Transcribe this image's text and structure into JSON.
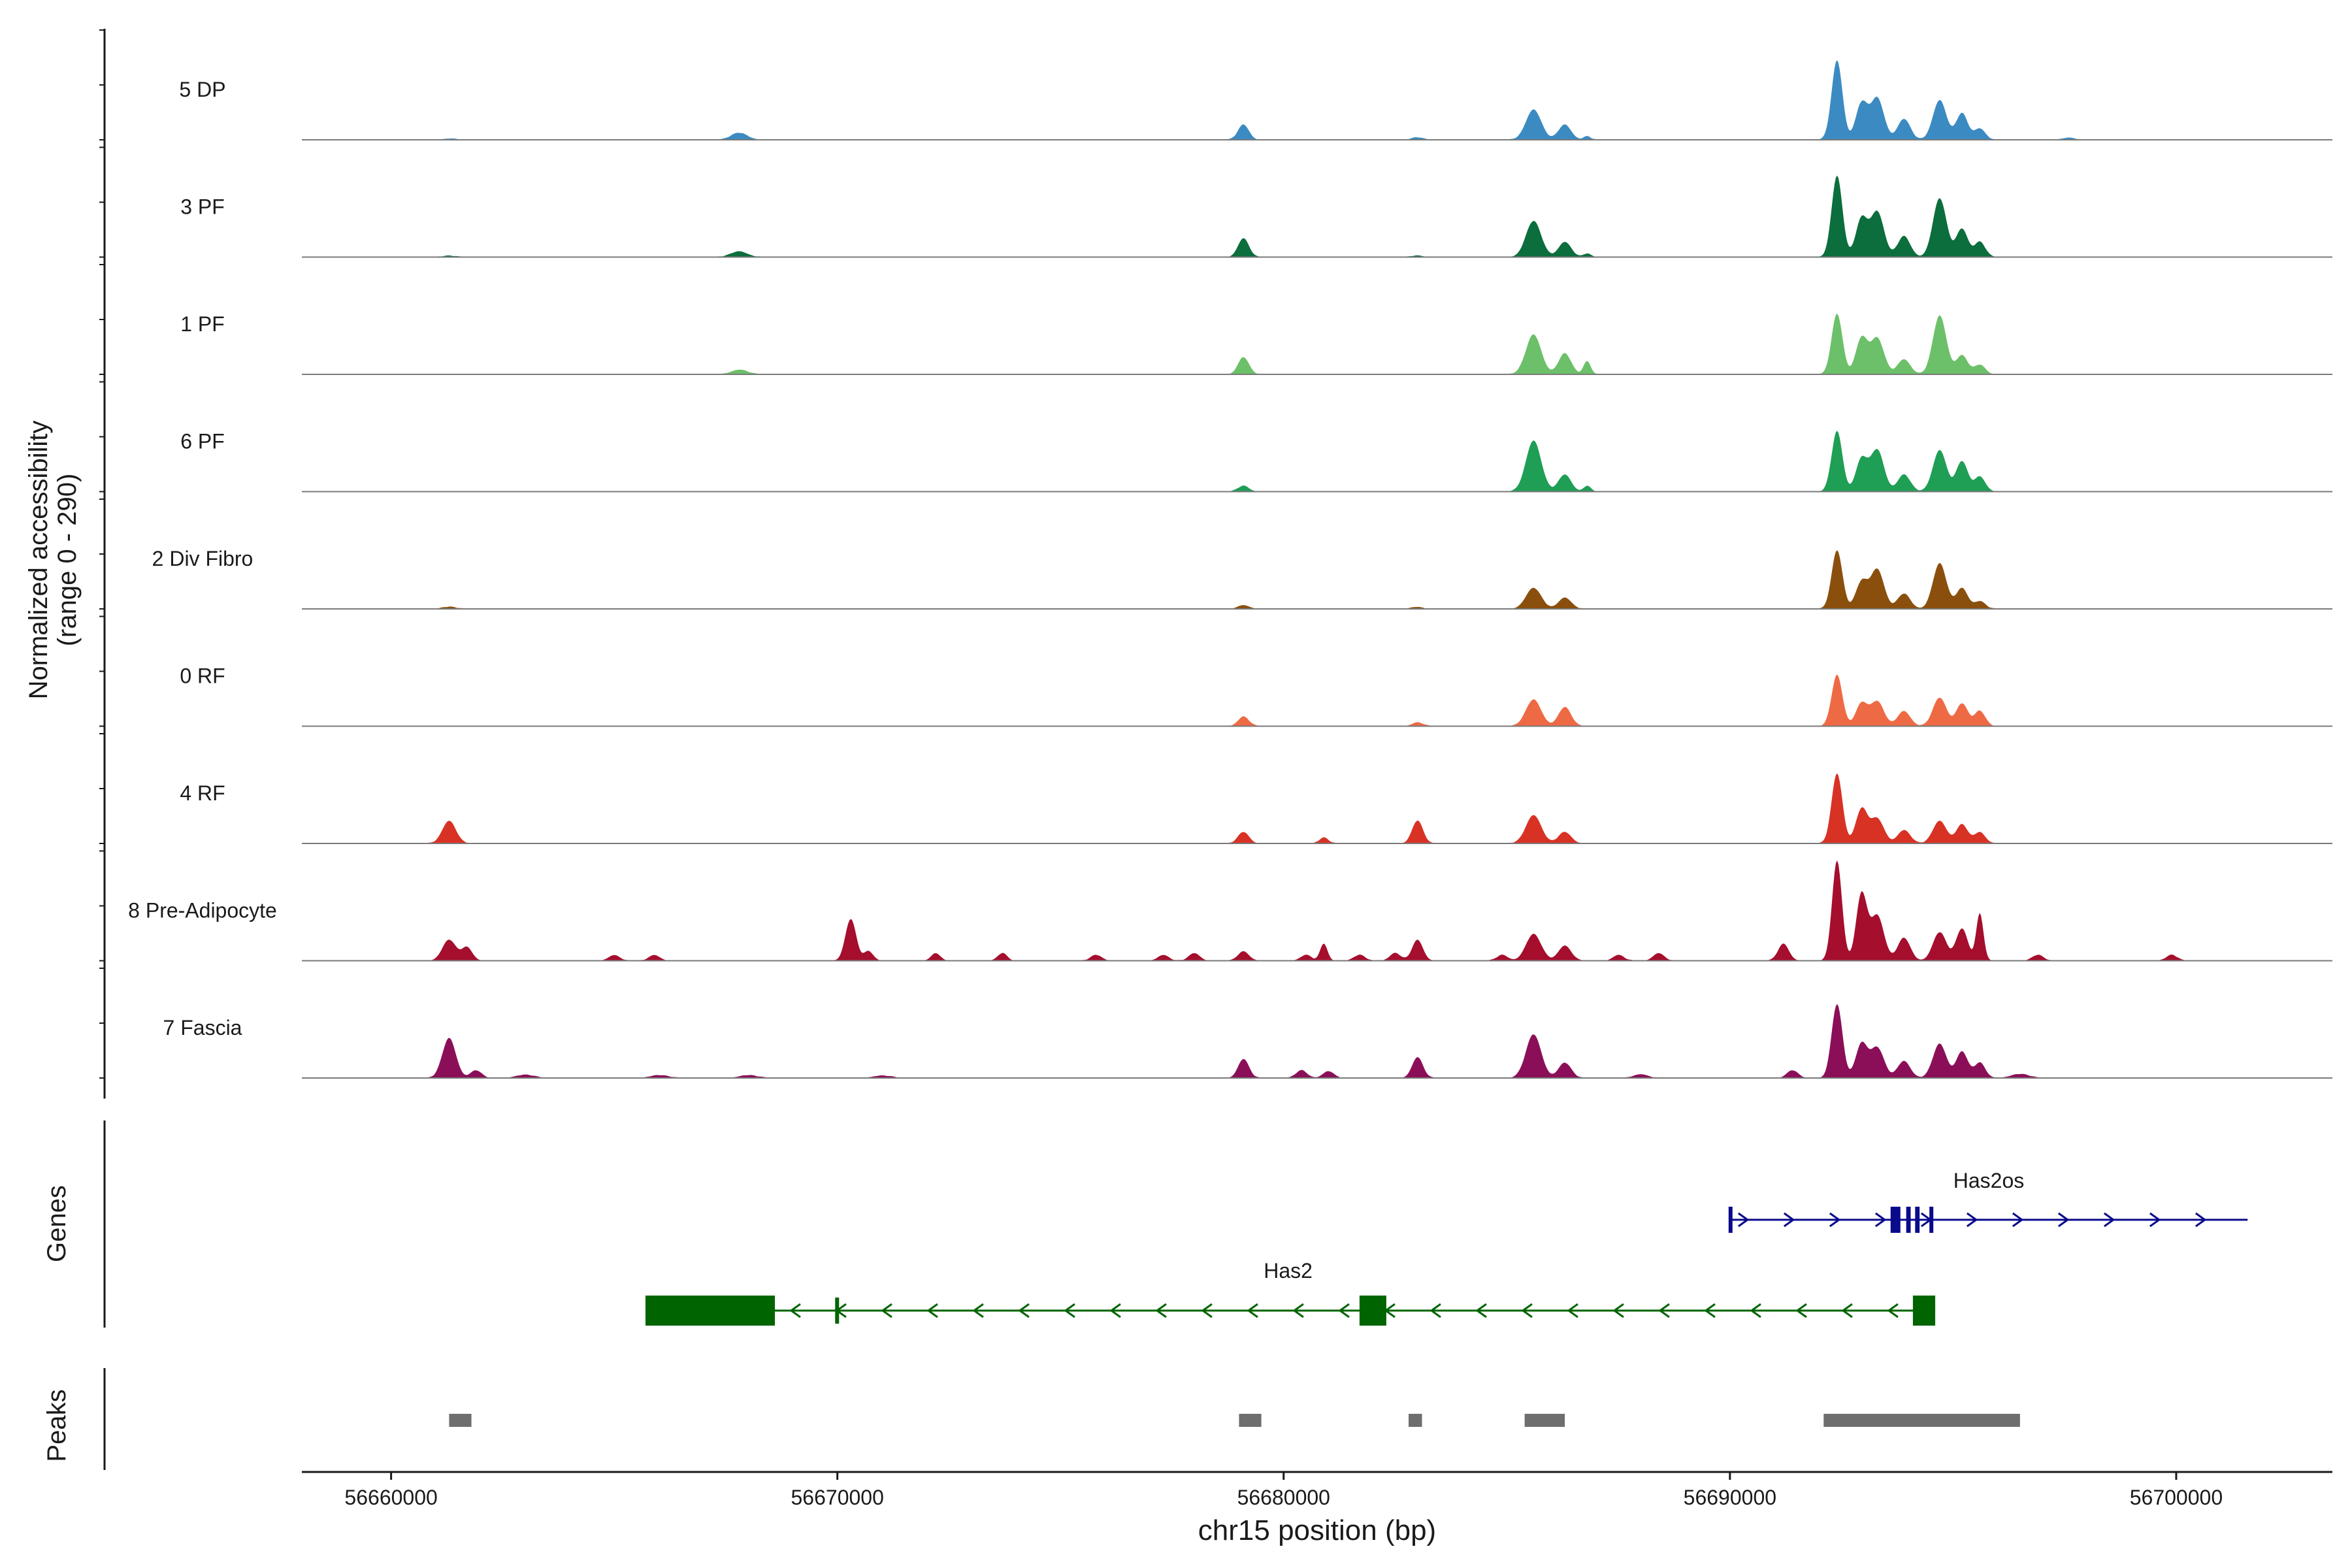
{
  "chart_data": {
    "type": "area",
    "title": "",
    "xlabel": "chr15 position (bp)",
    "ylabel": "Normalized accessibility",
    "ylabel_sub": "(range 0 - 290)",
    "xlim": [
      56658000,
      56703500
    ],
    "ylim": [
      0,
      290
    ],
    "x_ticks": [
      56660000,
      56670000,
      56680000,
      56690000,
      56700000
    ],
    "x_tick_labels": [
      "56660000",
      "56670000",
      "56680000",
      "56690000",
      "56700000"
    ],
    "tracks": [
      {
        "name": "5 DP",
        "color": "#3B8BC2",
        "peaks": [
          [
            56661300,
            3,
            150
          ],
          [
            56667800,
            18,
            180
          ],
          [
            56679100,
            40,
            120
          ],
          [
            56683000,
            6,
            120
          ],
          [
            56685600,
            80,
            170
          ],
          [
            56686300,
            40,
            140
          ],
          [
            56686800,
            9,
            80
          ],
          [
            56692400,
            210,
            120
          ],
          [
            56692950,
            95,
            130
          ],
          [
            56693300,
            110,
            150
          ],
          [
            56693900,
            55,
            140
          ],
          [
            56694700,
            105,
            150
          ],
          [
            56695200,
            70,
            130
          ],
          [
            56695600,
            30,
            120
          ],
          [
            56697600,
            6,
            120
          ]
        ]
      },
      {
        "name": "3 PF",
        "color": "#0B6E3C",
        "peaks": [
          [
            56661300,
            3,
            150
          ],
          [
            56667800,
            15,
            180
          ],
          [
            56679100,
            50,
            120
          ],
          [
            56683000,
            4,
            120
          ],
          [
            56685600,
            95,
            170
          ],
          [
            56686300,
            40,
            140
          ],
          [
            56686800,
            9,
            80
          ],
          [
            56692400,
            215,
            120
          ],
          [
            56692950,
            100,
            130
          ],
          [
            56693300,
            120,
            150
          ],
          [
            56693900,
            55,
            140
          ],
          [
            56694700,
            155,
            150
          ],
          [
            56695200,
            75,
            130
          ],
          [
            56695600,
            40,
            120
          ]
        ]
      },
      {
        "name": "1 PF",
        "color": "#6CC069",
        "peaks": [
          [
            56667800,
            12,
            180
          ],
          [
            56679100,
            45,
            120
          ],
          [
            56685600,
            105,
            170
          ],
          [
            56686300,
            55,
            140
          ],
          [
            56686800,
            35,
            80
          ],
          [
            56692400,
            160,
            120
          ],
          [
            56692950,
            95,
            130
          ],
          [
            56693300,
            95,
            150
          ],
          [
            56693900,
            40,
            140
          ],
          [
            56694700,
            155,
            150
          ],
          [
            56695200,
            50,
            130
          ],
          [
            56695600,
            25,
            120
          ]
        ]
      },
      {
        "name": "6 PF",
        "color": "#1F9E55",
        "peaks": [
          [
            56679100,
            15,
            120
          ],
          [
            56685600,
            135,
            170
          ],
          [
            56686300,
            45,
            140
          ],
          [
            56686800,
            15,
            80
          ],
          [
            56692400,
            160,
            120
          ],
          [
            56692950,
            85,
            130
          ],
          [
            56693300,
            110,
            150
          ],
          [
            56693900,
            45,
            140
          ],
          [
            56694700,
            110,
            150
          ],
          [
            56695200,
            80,
            130
          ],
          [
            56695600,
            40,
            120
          ]
        ]
      },
      {
        "name": "2 Div Fibro",
        "color": "#8B4F0D",
        "peaks": [
          [
            56661300,
            5,
            150
          ],
          [
            56679100,
            10,
            120
          ],
          [
            56683000,
            5,
            120
          ],
          [
            56685600,
            55,
            170
          ],
          [
            56686300,
            30,
            140
          ],
          [
            56692400,
            155,
            120
          ],
          [
            56692950,
            70,
            130
          ],
          [
            56693300,
            105,
            150
          ],
          [
            56693900,
            40,
            140
          ],
          [
            56694700,
            120,
            150
          ],
          [
            56695200,
            55,
            130
          ],
          [
            56695600,
            20,
            120
          ]
        ]
      },
      {
        "name": "0 RF",
        "color": "#EE6A45",
        "peaks": [
          [
            56679100,
            25,
            120
          ],
          [
            56683000,
            10,
            120
          ],
          [
            56685600,
            70,
            170
          ],
          [
            56686300,
            50,
            140
          ],
          [
            56692400,
            135,
            120
          ],
          [
            56692950,
            60,
            130
          ],
          [
            56693300,
            65,
            150
          ],
          [
            56693900,
            40,
            140
          ],
          [
            56694700,
            75,
            150
          ],
          [
            56695200,
            60,
            130
          ],
          [
            56695600,
            40,
            120
          ]
        ]
      },
      {
        "name": "4 RF",
        "color": "#D83225",
        "peaks": [
          [
            56661300,
            60,
            150
          ],
          [
            56679100,
            30,
            120
          ],
          [
            56680900,
            15,
            100
          ],
          [
            56683000,
            60,
            120
          ],
          [
            56685600,
            75,
            170
          ],
          [
            56686300,
            30,
            140
          ],
          [
            56692400,
            185,
            120
          ],
          [
            56692950,
            90,
            130
          ],
          [
            56693300,
            65,
            150
          ],
          [
            56693900,
            35,
            140
          ],
          [
            56694700,
            60,
            150
          ],
          [
            56695200,
            50,
            130
          ],
          [
            56695600,
            30,
            120
          ]
        ]
      },
      {
        "name": "8 Pre-Adipocyte",
        "color": "#A50E2D",
        "peaks": [
          [
            56661300,
            55,
            150
          ],
          [
            56661700,
            35,
            120
          ],
          [
            56665000,
            15,
            120
          ],
          [
            56665900,
            15,
            120
          ],
          [
            56670300,
            110,
            120
          ],
          [
            56670700,
            25,
            100
          ],
          [
            56672200,
            20,
            100
          ],
          [
            56673700,
            20,
            100
          ],
          [
            56675800,
            15,
            120
          ],
          [
            56677300,
            15,
            120
          ],
          [
            56678000,
            20,
            120
          ],
          [
            56679100,
            25,
            120
          ],
          [
            56680500,
            15,
            120
          ],
          [
            56680900,
            45,
            80
          ],
          [
            56681700,
            15,
            120
          ],
          [
            56682500,
            20,
            120
          ],
          [
            56683000,
            55,
            120
          ],
          [
            56684900,
            15,
            120
          ],
          [
            56685600,
            70,
            170
          ],
          [
            56686300,
            40,
            140
          ],
          [
            56687500,
            15,
            120
          ],
          [
            56688400,
            20,
            120
          ],
          [
            56691200,
            45,
            120
          ],
          [
            56692400,
            265,
            110
          ],
          [
            56692950,
            175,
            120
          ],
          [
            56693300,
            120,
            150
          ],
          [
            56693900,
            60,
            140
          ],
          [
            56694700,
            75,
            150
          ],
          [
            56695200,
            85,
            130
          ],
          [
            56695600,
            125,
            80
          ],
          [
            56696900,
            15,
            120
          ],
          [
            56699900,
            15,
            120
          ]
        ]
      },
      {
        "name": "7 Fascia",
        "color": "#8B0F58",
        "peaks": [
          [
            56661300,
            105,
            150
          ],
          [
            56661900,
            20,
            120
          ],
          [
            56663000,
            8,
            200
          ],
          [
            56666000,
            7,
            200
          ],
          [
            56668000,
            7,
            200
          ],
          [
            56671000,
            6,
            200
          ],
          [
            56679100,
            50,
            120
          ],
          [
            56680400,
            20,
            120
          ],
          [
            56681000,
            18,
            120
          ],
          [
            56683000,
            55,
            120
          ],
          [
            56685600,
            115,
            170
          ],
          [
            56686300,
            40,
            140
          ],
          [
            56688000,
            10,
            150
          ],
          [
            56691400,
            20,
            120
          ],
          [
            56692400,
            195,
            120
          ],
          [
            56692950,
            90,
            130
          ],
          [
            56693300,
            80,
            150
          ],
          [
            56693900,
            45,
            140
          ],
          [
            56694700,
            90,
            150
          ],
          [
            56695200,
            70,
            130
          ],
          [
            56695600,
            40,
            120
          ],
          [
            56696500,
            10,
            200
          ]
        ]
      }
    ],
    "genes": [
      {
        "name": "Has2os",
        "strand": "+",
        "start": 56690000,
        "end": 56701600,
        "color": "#0A0A8C",
        "exons": [
          [
            56689970,
            56690040
          ],
          [
            56693600,
            56693820
          ],
          [
            56693950,
            56694050
          ],
          [
            56694150,
            56694250
          ],
          [
            56694470,
            56694540
          ]
        ]
      },
      {
        "name": "Has2",
        "strand": "-",
        "start": 56665700,
        "end": 56694600,
        "color": "#006400",
        "exons": [
          [
            56665700,
            56668600
          ],
          [
            56669950,
            56670020
          ],
          [
            56681700,
            56682300
          ],
          [
            56694100,
            56694600
          ]
        ]
      }
    ],
    "peak_regions": [
      [
        56661300,
        56661800
      ],
      [
        56679000,
        56679500
      ],
      [
        56682800,
        56683100
      ],
      [
        56685400,
        56686300
      ],
      [
        56692100,
        56696500
      ]
    ],
    "gene_panel_label": "Genes",
    "peak_panel_label": "Peaks"
  }
}
